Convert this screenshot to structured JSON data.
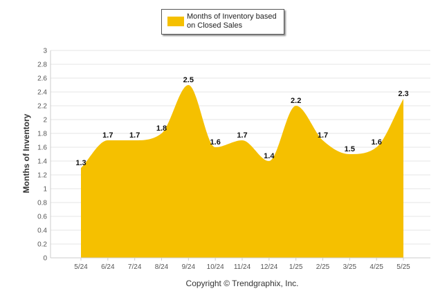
{
  "chart_data": {
    "type": "area",
    "categories": [
      "5/24",
      "6/24",
      "7/24",
      "8/24",
      "9/24",
      "10/24",
      "11/24",
      "12/24",
      "1/25",
      "2/25",
      "3/25",
      "4/25",
      "5/25"
    ],
    "series": [
      {
        "name": "Months of Inventory based on Closed Sales",
        "values": [
          1.3,
          1.7,
          1.7,
          1.8,
          2.5,
          1.6,
          1.7,
          1.4,
          2.2,
          1.7,
          1.5,
          1.6,
          2.3
        ]
      }
    ],
    "data_labels": [
      "1.3",
      "1.7",
      "1.7",
      "1.8",
      "2.5",
      "1.6",
      "1.7",
      "1.4",
      "2.2",
      "1.7",
      "1.5",
      "1.6",
      "2.3"
    ],
    "ylabel": "Months of Inventory",
    "xlabel": "",
    "ylim": [
      0,
      3
    ],
    "yticks": [
      "0",
      "0.2",
      "0.4",
      "0.6",
      "0.8",
      "1",
      "1.2",
      "1.4",
      "1.6",
      "1.8",
      "2",
      "2.2",
      "2.4",
      "2.6",
      "2.8",
      "3"
    ],
    "grid": true,
    "legend_position": "top-center",
    "colors": {
      "area": "#F5C000",
      "grid": "#E6E6E6",
      "axis": "#CCCCCC"
    }
  },
  "legend": {
    "label": "Months of Inventory based on Closed Sales"
  },
  "footer": {
    "copyright": "Copyright © Trendgraphix, Inc."
  }
}
